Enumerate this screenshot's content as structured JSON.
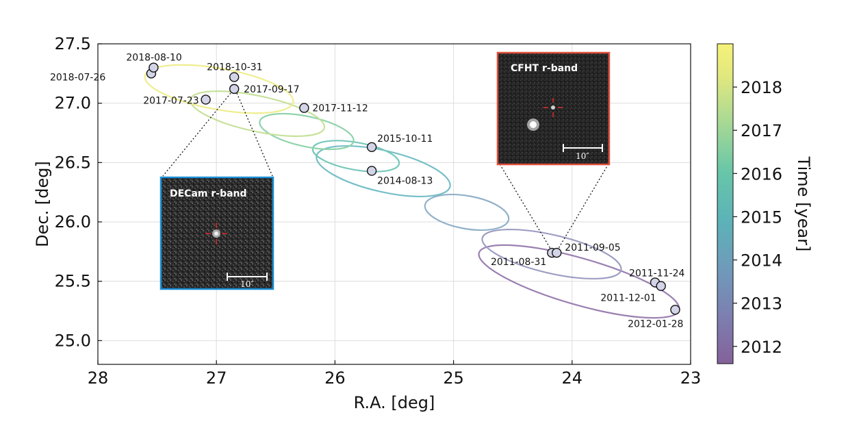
{
  "chart_data": {
    "type": "scatter",
    "xlabel": "R.A. [deg]",
    "ylabel": "Dec. [deg]",
    "xlim": [
      28,
      23
    ],
    "ylim": [
      24.8,
      27.5
    ],
    "xticks": [
      "28",
      "27",
      "26",
      "25",
      "24",
      "23"
    ],
    "yticks": [
      "25.0",
      "25.5",
      "26.0",
      "26.5",
      "27.0",
      "27.5"
    ],
    "grid": true,
    "colorbar": {
      "label": "Time [year]",
      "range": [
        2011.6,
        2019.0
      ],
      "ticks": [
        "2012",
        "2013",
        "2014",
        "2015",
        "2016",
        "2017",
        "2018"
      ],
      "colormap": "viridis"
    },
    "points": [
      {
        "label": "2011-08-31",
        "ra": 24.17,
        "dec": 25.74,
        "year": 2011.66
      },
      {
        "label": "2011-09-05",
        "ra": 24.13,
        "dec": 25.74,
        "year": 2011.68
      },
      {
        "label": "2011-11-24",
        "ra": 23.3,
        "dec": 25.49,
        "year": 2011.9
      },
      {
        "label": "2011-12-01",
        "ra": 23.25,
        "dec": 25.46,
        "year": 2011.92
      },
      {
        "label": "2012-01-28",
        "ra": 23.13,
        "dec": 25.26,
        "year": 2012.08
      },
      {
        "label": "2014-08-13",
        "ra": 25.69,
        "dec": 26.43,
        "year": 2014.62
      },
      {
        "label": "2015-10-11",
        "ra": 25.69,
        "dec": 26.63,
        "year": 2015.78
      },
      {
        "label": "2017-07-23",
        "ra": 27.09,
        "dec": 27.03,
        "year": 2017.56
      },
      {
        "label": "2017-09-17",
        "ra": 26.85,
        "dec": 27.12,
        "year": 2017.71
      },
      {
        "label": "2017-11-12",
        "ra": 26.26,
        "dec": 26.96,
        "year": 2017.86
      },
      {
        "label": "2018-07-26",
        "ra": 27.55,
        "dec": 27.25,
        "year": 2018.57
      },
      {
        "label": "2018-08-10",
        "ra": 27.53,
        "dec": 27.3,
        "year": 2018.61
      },
      {
        "label": "2018-10-31",
        "ra": 26.85,
        "dec": 27.22,
        "year": 2018.83
      }
    ],
    "insets": [
      {
        "title": "DECam r-band",
        "scale": "10″",
        "border": "#1b8fd6"
      },
      {
        "title": "CFHT r-band",
        "scale": "10″",
        "border": "#e0503c"
      }
    ]
  }
}
